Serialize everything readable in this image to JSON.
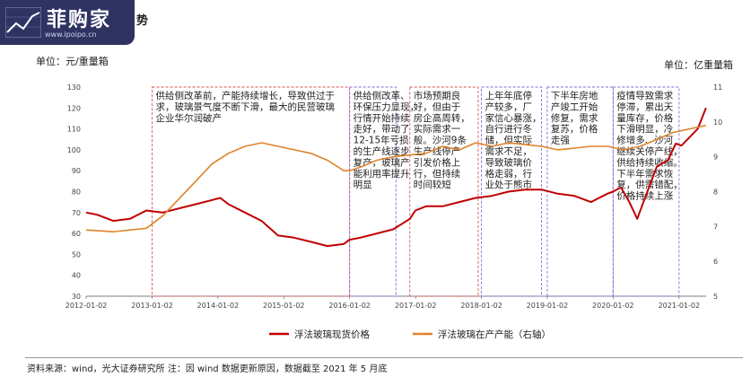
{
  "logo": {
    "text": "菲购家",
    "url": "www.ipoipo.cn"
  },
  "title_fragment": "势",
  "unit_left": "单位：元/重量箱",
  "unit_right": "单位：亿重量箱",
  "source": "资料来源：wind，光大证券研究所    注：因 wind 数据更新原因，数据截至 2021 年 5 月底",
  "chart_data": {
    "type": "line",
    "x_ticks": [
      "2012-01-02",
      "2013-01-02",
      "2014-01-02",
      "2015-01-02",
      "2016-01-02",
      "2017-01-02",
      "2018-01-02",
      "2019-01-02",
      "2020-01-02",
      "2021-01-02"
    ],
    "x_range": [
      "2012-01-02",
      "2021-06-01"
    ],
    "ylim_left": [
      30,
      130
    ],
    "yticks_left": [
      30,
      40,
      50,
      60,
      70,
      80,
      90,
      100,
      110,
      120,
      130
    ],
    "ylim_right": [
      5,
      11
    ],
    "yticks_right": [
      5,
      6,
      7,
      8,
      9,
      10,
      11
    ],
    "grid": false,
    "legend_position": "bottom",
    "series": [
      {
        "name": "浮法玻璃现货价格",
        "axis": "left",
        "color": "#c00000",
        "points": [
          [
            "2012-01-02",
            70
          ],
          [
            "2012-03-01",
            69
          ],
          [
            "2012-06-01",
            66
          ],
          [
            "2012-09-01",
            67
          ],
          [
            "2012-12-01",
            71
          ],
          [
            "2013-03-01",
            70
          ],
          [
            "2013-06-01",
            72
          ],
          [
            "2013-09-01",
            74
          ],
          [
            "2013-12-01",
            76
          ],
          [
            "2014-01-15",
            77
          ],
          [
            "2014-03-01",
            74
          ],
          [
            "2014-06-01",
            70
          ],
          [
            "2014-09-01",
            66
          ],
          [
            "2014-12-01",
            59
          ],
          [
            "2015-03-01",
            58
          ],
          [
            "2015-06-01",
            56
          ],
          [
            "2015-09-01",
            54
          ],
          [
            "2015-12-01",
            55
          ],
          [
            "2016-01-01",
            57
          ],
          [
            "2016-03-01",
            58
          ],
          [
            "2016-06-01",
            60
          ],
          [
            "2016-09-01",
            62
          ],
          [
            "2016-12-01",
            67
          ],
          [
            "2017-01-01",
            71
          ],
          [
            "2017-03-01",
            73
          ],
          [
            "2017-06-01",
            73
          ],
          [
            "2017-09-01",
            75
          ],
          [
            "2017-12-01",
            77
          ],
          [
            "2018-03-01",
            78
          ],
          [
            "2018-06-01",
            80
          ],
          [
            "2018-09-01",
            81
          ],
          [
            "2018-12-01",
            81
          ],
          [
            "2019-03-01",
            79
          ],
          [
            "2019-06-01",
            78
          ],
          [
            "2019-09-01",
            75
          ],
          [
            "2019-12-01",
            79
          ],
          [
            "2020-01-01",
            80
          ],
          [
            "2020-02-15",
            82
          ],
          [
            "2020-04-01",
            75
          ],
          [
            "2020-05-15",
            67
          ],
          [
            "2020-07-01",
            78
          ],
          [
            "2020-09-01",
            92
          ],
          [
            "2020-11-01",
            95
          ],
          [
            "2020-12-15",
            103
          ],
          [
            "2021-01-15",
            102
          ],
          [
            "2021-03-01",
            106
          ],
          [
            "2021-04-15",
            110
          ],
          [
            "2021-05-31",
            120
          ]
        ]
      },
      {
        "name": "浮法玻璃在产产能（右轴）",
        "axis": "right",
        "color": "#e0822a",
        "points": [
          [
            "2012-01-02",
            6.9
          ],
          [
            "2012-06-01",
            6.85
          ],
          [
            "2012-12-01",
            6.95
          ],
          [
            "2013-03-01",
            7.3
          ],
          [
            "2013-06-01",
            7.8
          ],
          [
            "2013-09-01",
            8.3
          ],
          [
            "2013-12-01",
            8.8
          ],
          [
            "2014-03-01",
            9.1
          ],
          [
            "2014-06-01",
            9.3
          ],
          [
            "2014-09-01",
            9.4
          ],
          [
            "2014-12-01",
            9.3
          ],
          [
            "2015-03-01",
            9.2
          ],
          [
            "2015-06-01",
            9.1
          ],
          [
            "2015-09-01",
            8.9
          ],
          [
            "2015-12-01",
            8.6
          ],
          [
            "2016-01-01",
            8.6
          ],
          [
            "2016-03-01",
            8.7
          ],
          [
            "2016-06-01",
            8.9
          ],
          [
            "2016-09-01",
            9.0
          ],
          [
            "2016-12-01",
            9.05
          ],
          [
            "2017-03-01",
            9.1
          ],
          [
            "2017-06-01",
            9.3
          ],
          [
            "2017-09-01",
            9.2
          ],
          [
            "2017-12-01",
            9.4
          ],
          [
            "2018-03-01",
            9.3
          ],
          [
            "2018-06-01",
            9.4
          ],
          [
            "2018-09-01",
            9.35
          ],
          [
            "2018-12-01",
            9.3
          ],
          [
            "2019-03-01",
            9.2
          ],
          [
            "2019-06-01",
            9.25
          ],
          [
            "2019-09-01",
            9.3
          ],
          [
            "2019-12-01",
            9.3
          ],
          [
            "2020-03-01",
            9.2
          ],
          [
            "2020-06-01",
            9.3
          ],
          [
            "2020-09-01",
            9.5
          ],
          [
            "2020-12-01",
            9.7
          ],
          [
            "2021-03-01",
            9.8
          ],
          [
            "2021-05-31",
            9.9
          ]
        ]
      }
    ],
    "annotations": [
      {
        "from": "2013-01-02",
        "to": "2016-01-02",
        "lines": [
          "供给侧改革前，产能持续增长，导致供过于",
          "求，玻璃景气度不断下滑，最大的民营玻璃",
          "企业华尔润破产"
        ]
      },
      {
        "from": "2016-01-02",
        "to": "2016-09-15",
        "lines": [
          "供给侧改革、",
          "环保压力显现，",
          "行情开始持续",
          "走好，带动了",
          "12-15年亏损",
          "的生产线逐步",
          "复产，玻璃产",
          "能利用率提升",
          "明显"
        ]
      },
      {
        "from": "2016-12-01",
        "to": "2017-12-15",
        "lines": [
          "市场预期良",
          "好，但由于",
          "房企高周转，",
          "实际需求一",
          "般。沙河9条",
          "生产线停产",
          "引发价格上",
          "行，但持续",
          "时间较短"
        ]
      },
      {
        "from": "2018-01-02",
        "to": "2018-12-01",
        "lines": [
          "上年年底停",
          "产较多，厂",
          "家信心暴涨，",
          "自行进行冬",
          "储，但实际",
          "需求不足，",
          "导致玻璃价",
          "格走弱，行",
          "业处于熊市"
        ]
      },
      {
        "from": "2019-01-02",
        "to": "2020-01-02",
        "lines": [
          "下半年房地",
          "产竣工开始",
          "修复，需求",
          "复苏，价格",
          "走强"
        ]
      },
      {
        "from": "2020-01-02",
        "to": "2021-01-02",
        "lines": [
          "疫情导致需求",
          "停滞，累出天",
          "量库存，价格",
          "下滑明显，冷",
          "修增多、沙河",
          "继续关停产线，",
          "供给持续收缩。",
          "下半年需求恢",
          "复，供需错配，",
          "价格持续上涨"
        ]
      }
    ]
  }
}
